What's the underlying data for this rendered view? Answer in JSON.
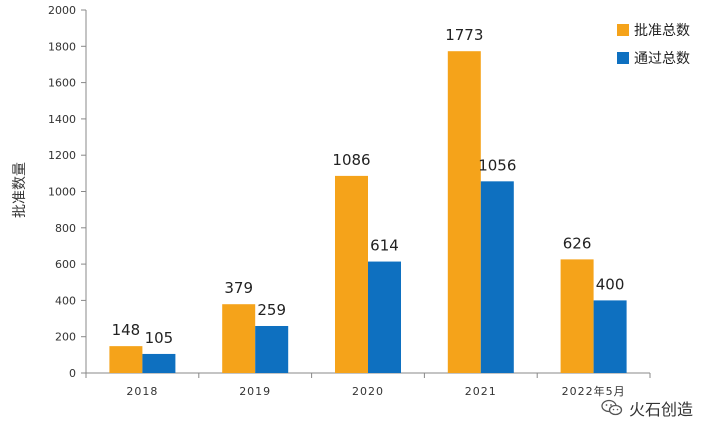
{
  "chart_data": {
    "type": "bar",
    "categories": [
      "2018",
      "2019",
      "2020",
      "2021",
      "2022年5月"
    ],
    "series": [
      {
        "name": "批准总数",
        "values": [
          148,
          379,
          1086,
          1773,
          626
        ],
        "color": "#f5a31a"
      },
      {
        "name": "通过总数",
        "values": [
          105,
          259,
          614,
          1056,
          400
        ],
        "color": "#0e70c0"
      }
    ],
    "ylabel": "批准数量",
    "ylim": [
      0,
      2000
    ],
    "yticks": [
      0,
      200,
      400,
      600,
      800,
      1000,
      1200,
      1400,
      1600,
      1800,
      2000
    ],
    "legend_position": "top-right",
    "grid": false
  },
  "watermark": {
    "text": "火石创造",
    "icon": "wechat-icon"
  }
}
